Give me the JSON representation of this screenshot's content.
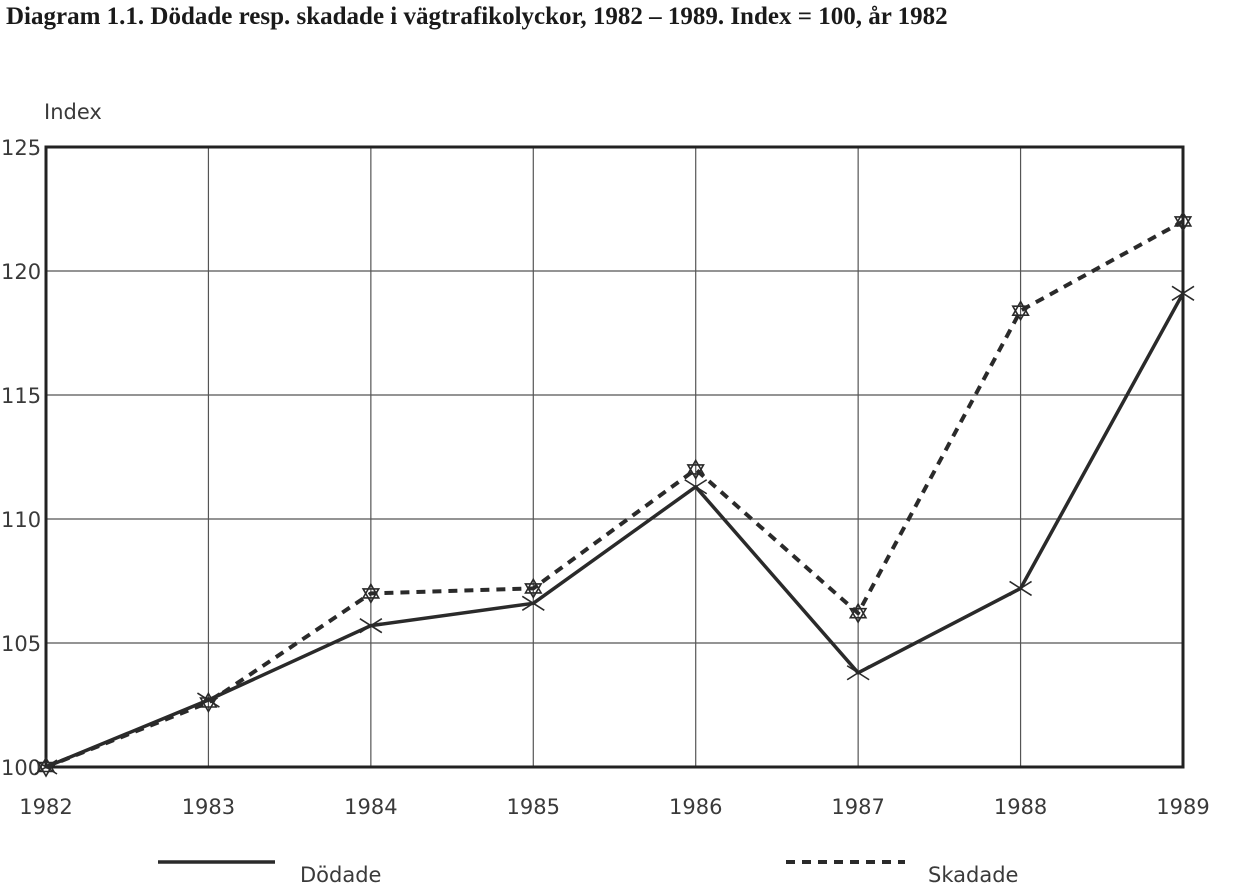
{
  "chart_data": {
    "type": "line",
    "title": "Diagram 1.1.  Dödade resp. skadade i vägtrafikolyckor, 1982 – 1989. Index = 100, år 1982",
    "xlabel": "",
    "ylabel": "Index",
    "ylim": [
      100,
      125
    ],
    "yticks": [
      "100",
      "105",
      "110",
      "115",
      "120",
      "125"
    ],
    "categories": [
      "1982",
      "1983",
      "1984",
      "1985",
      "1986",
      "1987",
      "1988",
      "1989"
    ],
    "grid": true,
    "legend_position": "bottom",
    "series": [
      {
        "name": "Dödade",
        "style": "solid",
        "marker": "x",
        "values": [
          100,
          102.7,
          105.7,
          106.6,
          111.3,
          103.8,
          107.2,
          119.1
        ]
      },
      {
        "name": "Skadade",
        "style": "dashed",
        "marker": "star",
        "values": [
          100,
          102.6,
          107.0,
          107.2,
          112.0,
          106.2,
          118.4,
          122.0
        ]
      }
    ]
  }
}
